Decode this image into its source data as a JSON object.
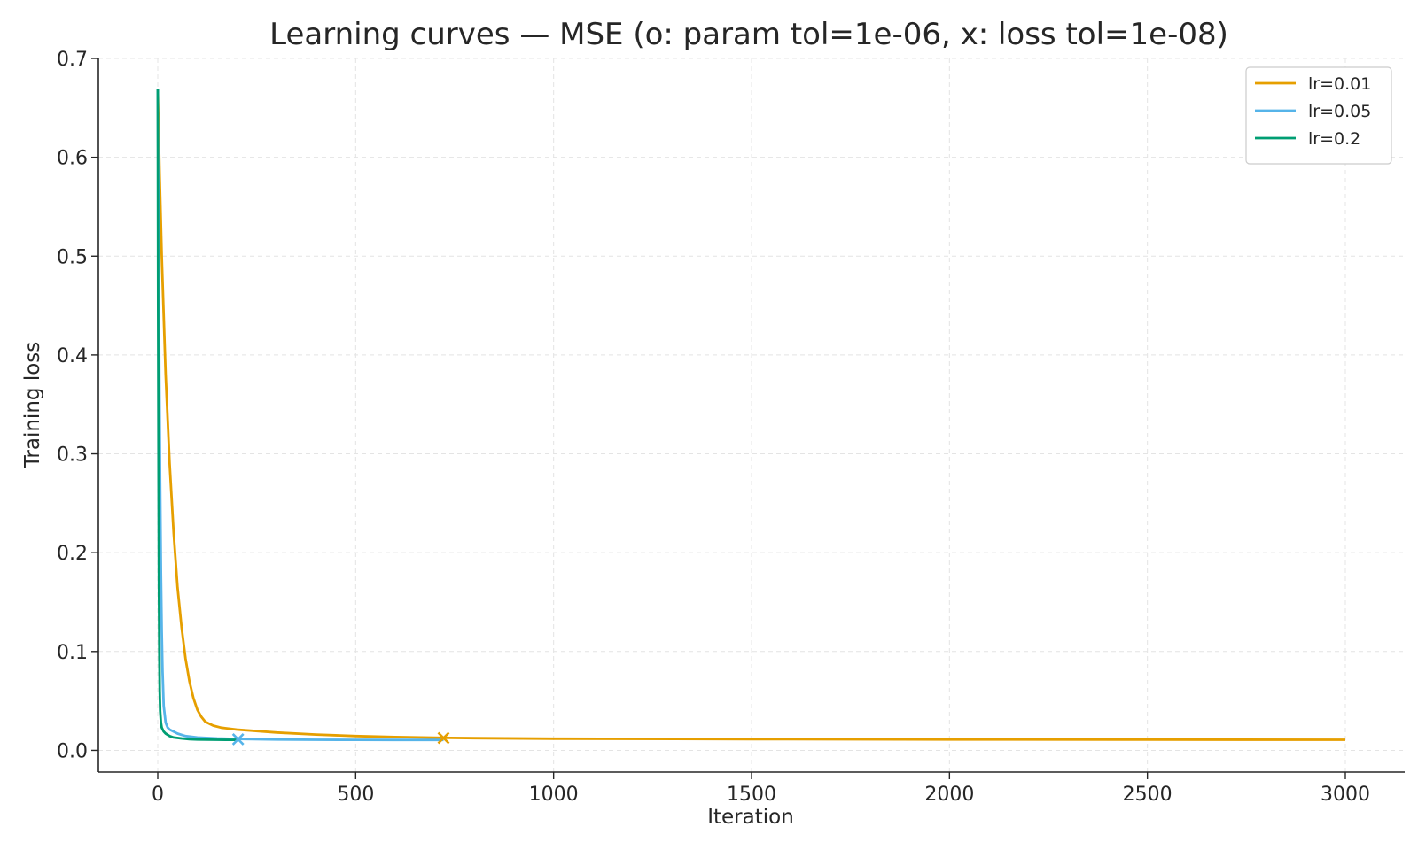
{
  "chart_data": {
    "type": "line",
    "title": "Learning curves — MSE  (o: param tol=1e-06, x: loss tol=1e-08)",
    "xlabel": "Iteration",
    "ylabel": "Training loss",
    "xlim": [
      -150,
      3150
    ],
    "ylim": [
      -0.022,
      0.7
    ],
    "xticks": [
      0,
      500,
      1000,
      1500,
      2000,
      2500,
      3000
    ],
    "xtick_labels": [
      "0",
      "500",
      "1000",
      "1500",
      "2000",
      "2500",
      "3000"
    ],
    "yticks": [
      0.0,
      0.1,
      0.2,
      0.3,
      0.4,
      0.5,
      0.6,
      0.7
    ],
    "ytick_labels": [
      "0.0",
      "0.1",
      "0.2",
      "0.3",
      "0.4",
      "0.5",
      "0.6",
      "0.7"
    ],
    "grid": true,
    "legend_position": "top-right",
    "series": [
      {
        "name": "lr=0.01",
        "color": "#E69F00",
        "x": [
          0,
          5,
          10,
          20,
          30,
          40,
          50,
          60,
          70,
          80,
          90,
          100,
          110,
          120,
          140,
          160,
          200,
          300,
          400,
          500,
          600,
          700,
          800,
          1000,
          1500,
          2000,
          2500,
          3000
        ],
        "y": [
          0.669,
          0.58,
          0.5,
          0.38,
          0.29,
          0.22,
          0.165,
          0.125,
          0.093,
          0.07,
          0.053,
          0.041,
          0.034,
          0.029,
          0.025,
          0.023,
          0.021,
          0.018,
          0.016,
          0.0145,
          0.0135,
          0.0128,
          0.0123,
          0.0118,
          0.0113,
          0.011,
          0.0108,
          0.0107
        ],
        "end_marker": {
          "type": "x",
          "x": 722,
          "y": 0.0125
        }
      },
      {
        "name": "lr=0.05",
        "color": "#56B4E9",
        "x": [
          0,
          2,
          4,
          6,
          8,
          10,
          12,
          15,
          20,
          25,
          30,
          40,
          50,
          70,
          100,
          150,
          203,
          300,
          400,
          500,
          600,
          722
        ],
        "y": [
          0.669,
          0.52,
          0.38,
          0.27,
          0.18,
          0.12,
          0.08,
          0.045,
          0.028,
          0.023,
          0.021,
          0.019,
          0.017,
          0.0145,
          0.013,
          0.012,
          0.0115,
          0.011,
          0.0107,
          0.0106,
          0.0105,
          0.0105
        ],
        "end_marker": {
          "type": "x",
          "x": 203,
          "y": 0.0112
        }
      },
      {
        "name": "lr=0.2",
        "color": "#009E73",
        "x": [
          0,
          1,
          2,
          3,
          4,
          5,
          6,
          8,
          10,
          15,
          20,
          30,
          40,
          60,
          80,
          100,
          150,
          203
        ],
        "y": [
          0.669,
          0.45,
          0.28,
          0.17,
          0.1,
          0.06,
          0.04,
          0.028,
          0.023,
          0.019,
          0.017,
          0.0145,
          0.013,
          0.012,
          0.0113,
          0.011,
          0.0107,
          0.0106
        ]
      }
    ]
  }
}
